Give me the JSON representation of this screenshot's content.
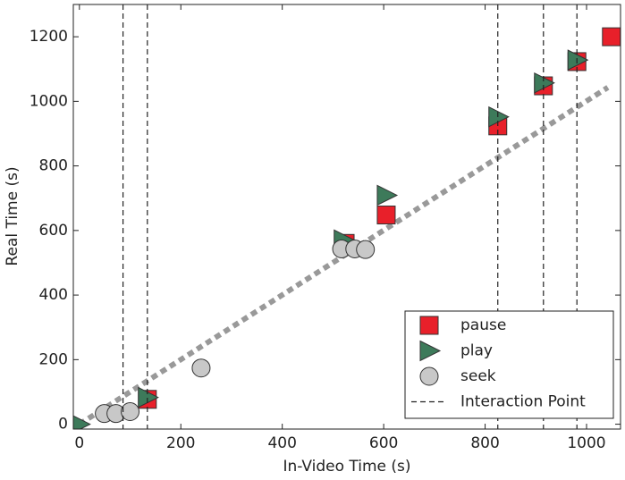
{
  "chart_data": {
    "type": "scatter",
    "xlabel": "In-Video Time (s)",
    "ylabel": "Real Time (s)",
    "xlim": [
      -12,
      1067
    ],
    "ylim": [
      -15,
      1300
    ],
    "xticks": [
      0,
      200,
      400,
      600,
      800,
      1000
    ],
    "yticks": [
      0,
      200,
      400,
      600,
      800,
      1000,
      1200
    ],
    "legend": "lower right",
    "series": [
      {
        "name": "pause",
        "marker": "square",
        "color": "#e8202a",
        "x": [
          134,
          524,
          605,
          825,
          915,
          981,
          1049
        ],
        "values": [
          77,
          560,
          648,
          924,
          1048,
          1123,
          1200
        ]
      },
      {
        "name": "play",
        "marker": "triangle",
        "color": "#3d7a5a",
        "x": [
          0,
          134,
          520,
          605,
          825,
          915,
          981
        ],
        "values": [
          0,
          83,
          571,
          709,
          952,
          1057,
          1128
        ]
      },
      {
        "name": "seek",
        "marker": "circle",
        "color": "#c8c8c8",
        "x": [
          49,
          72,
          100,
          240,
          517,
          543,
          564
        ],
        "values": [
          33,
          33,
          39,
          174,
          543,
          543,
          541
        ]
      },
      {
        "name": "Interaction Point",
        "marker": "vline",
        "color": "#222222",
        "x": [
          86,
          134,
          825,
          915,
          981
        ]
      }
    ],
    "trend_line": {
      "color": "#999999",
      "x": [
        0,
        1042
      ],
      "values": [
        0,
        1043
      ]
    }
  }
}
